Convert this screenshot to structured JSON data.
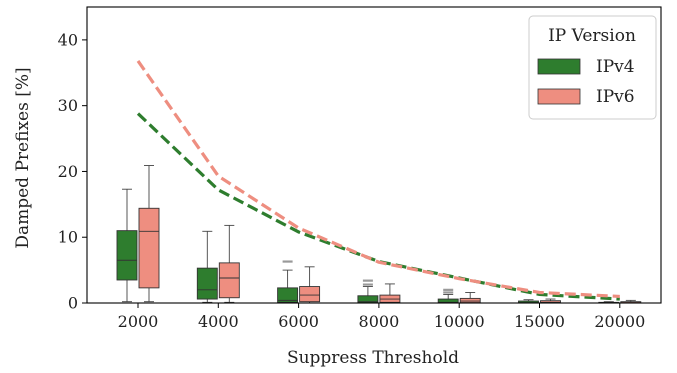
{
  "chart_data": {
    "type": "box",
    "title": "",
    "xlabel": "Suppress Threshold",
    "ylabel": "Damped Prefixes [%]",
    "ylim": [
      0,
      45
    ],
    "yticks": [
      0,
      10,
      20,
      30,
      40
    ],
    "categories": [
      "2000",
      "4000",
      "6000",
      "8000",
      "10000",
      "15000",
      "20000"
    ],
    "legend": {
      "title": "IP Version",
      "placement": "top-right"
    },
    "grid": false,
    "series": [
      {
        "name": "IPv4",
        "color": "#2e7d2e",
        "boxes": [
          {
            "whislo": 0.2,
            "q1": 3.5,
            "med": 6.5,
            "q3": 11.0,
            "whishi": 17.3,
            "fliers": []
          },
          {
            "whislo": 0.1,
            "q1": 0.6,
            "med": 2.0,
            "q3": 5.3,
            "whishi": 10.9,
            "fliers": []
          },
          {
            "whislo": 0.0,
            "q1": 0.1,
            "med": 0.4,
            "q3": 2.3,
            "whishi": 5.0,
            "fliers": [
              6.3
            ]
          },
          {
            "whislo": 0.0,
            "q1": 0.05,
            "med": 0.2,
            "q3": 1.1,
            "whishi": 2.5,
            "fliers": [
              2.8,
              3.4
            ]
          },
          {
            "whislo": 0.0,
            "q1": 0.02,
            "med": 0.1,
            "q3": 0.6,
            "whishi": 1.3,
            "fliers": [
              1.6,
              2.0
            ]
          },
          {
            "whislo": 0.0,
            "q1": 0.0,
            "med": 0.05,
            "q3": 0.3,
            "whishi": 0.5,
            "fliers": []
          },
          {
            "whislo": 0.0,
            "q1": 0.0,
            "med": 0.02,
            "q3": 0.1,
            "whishi": 0.2,
            "fliers": []
          }
        ],
        "mean_line": [
          28.8,
          17.2,
          10.8,
          6.3,
          3.8,
          1.3,
          0.6
        ]
      },
      {
        "name": "IPv6",
        "color": "#ee8e80",
        "boxes": [
          {
            "whislo": 0.2,
            "q1": 2.3,
            "med": 10.9,
            "q3": 14.4,
            "whishi": 20.9,
            "fliers": []
          },
          {
            "whislo": 0.1,
            "q1": 0.8,
            "med": 3.8,
            "q3": 6.1,
            "whishi": 11.8,
            "fliers": []
          },
          {
            "whislo": 0.0,
            "q1": 0.2,
            "med": 1.2,
            "q3": 2.5,
            "whishi": 5.5,
            "fliers": []
          },
          {
            "whislo": 0.0,
            "q1": 0.1,
            "med": 0.6,
            "q3": 1.2,
            "whishi": 2.9,
            "fliers": []
          },
          {
            "whislo": 0.0,
            "q1": 0.05,
            "med": 0.3,
            "q3": 0.7,
            "whishi": 1.6,
            "fliers": []
          },
          {
            "whislo": 0.0,
            "q1": 0.0,
            "med": 0.1,
            "q3": 0.35,
            "whishi": 0.6,
            "fliers": []
          },
          {
            "whislo": 0.0,
            "q1": 0.0,
            "med": 0.05,
            "q3": 0.2,
            "whishi": 0.4,
            "fliers": []
          }
        ],
        "mean_line": [
          36.8,
          19.3,
          11.4,
          6.2,
          3.7,
          1.6,
          1.0
        ]
      }
    ]
  }
}
